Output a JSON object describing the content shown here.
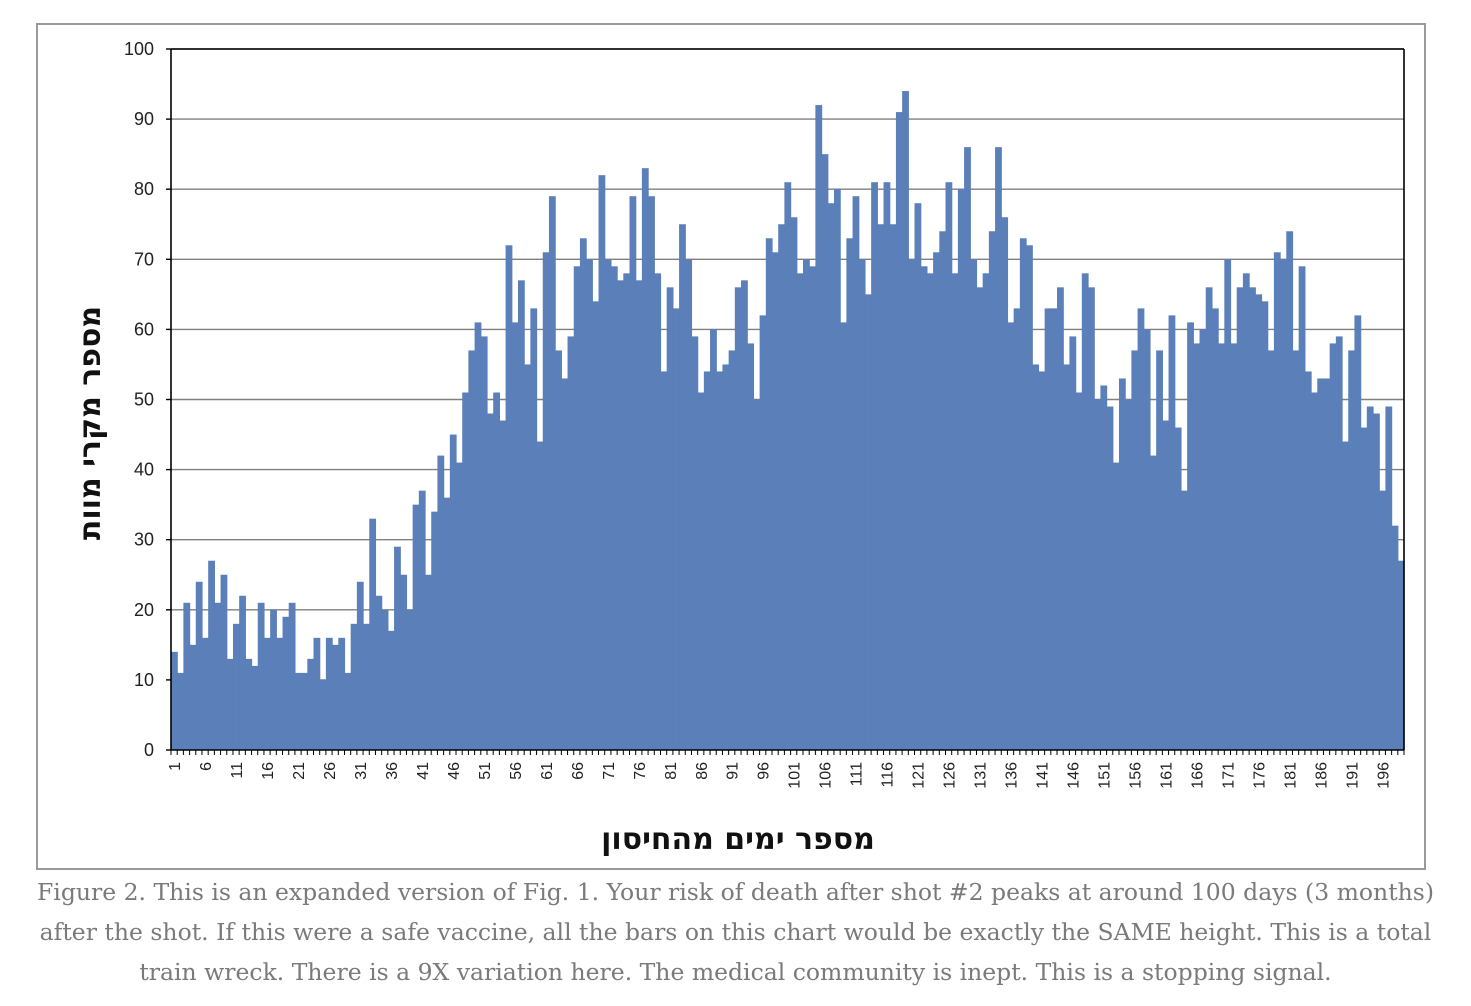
{
  "caption": "Figure 2. This is an expanded version of Fig. 1. Your risk of death after shot #2 peaks at around 100 days (3 months) after the shot. If this were a safe vaccine, all the bars on this chart would be exactly the SAME height. This is a total train wreck. There is a 9X variation here. The medical community is inept. This is a stopping signal.",
  "colors": {
    "bar": "#5b7fb8",
    "grid": "#7f7f7f",
    "axis": "#000000",
    "frame": "#9a9a9a",
    "caption": "#7a7a7a"
  },
  "chart_data": {
    "type": "bar",
    "title": "",
    "xlabel": "מספר ימים מהחיסון",
    "ylabel": "מספר מקרי מוות",
    "ylim": [
      0,
      100
    ],
    "yticks": [
      0,
      10,
      20,
      30,
      40,
      50,
      60,
      70,
      80,
      90,
      100
    ],
    "xtick_labels": [
      "1",
      "6",
      "11",
      "16",
      "21",
      "26",
      "31",
      "36",
      "41",
      "46",
      "51",
      "56",
      "61",
      "66",
      "71",
      "76",
      "81",
      "86",
      "91",
      "96",
      "101",
      "106",
      "111",
      "116",
      "121",
      "126",
      "131",
      "136",
      "141",
      "146",
      "151",
      "156",
      "161",
      "166",
      "171",
      "176",
      "181",
      "186",
      "191",
      "196"
    ],
    "grid": true,
    "legend": false,
    "x_start": 1,
    "values": [
      14,
      11,
      21,
      15,
      24,
      16,
      27,
      21,
      25,
      13,
      18,
      22,
      13,
      12,
      21,
      16,
      20,
      16,
      19,
      21,
      11,
      11,
      13,
      16,
      10,
      16,
      15,
      16,
      11,
      18,
      24,
      18,
      33,
      22,
      20,
      17,
      29,
      25,
      20,
      35,
      37,
      25,
      34,
      42,
      36,
      45,
      41,
      51,
      57,
      61,
      59,
      48,
      51,
      47,
      72,
      61,
      67,
      55,
      63,
      44,
      71,
      79,
      57,
      53,
      59,
      69,
      73,
      70,
      64,
      82,
      70,
      69,
      67,
      68,
      79,
      67,
      83,
      79,
      68,
      54,
      66,
      63,
      75,
      70,
      59,
      51,
      54,
      60,
      54,
      55,
      57,
      66,
      67,
      58,
      50,
      62,
      73,
      71,
      75,
      81,
      76,
      68,
      70,
      69,
      92,
      85,
      78,
      80,
      61,
      73,
      79,
      70,
      65,
      81,
      75,
      81,
      75,
      91,
      94,
      70,
      78,
      69,
      68,
      71,
      74,
      81,
      68,
      80,
      86,
      70,
      66,
      68,
      74,
      86,
      76,
      61,
      63,
      73,
      72,
      55,
      54,
      63,
      63,
      66,
      55,
      59,
      51,
      68,
      66,
      50,
      52,
      49,
      41,
      53,
      50,
      57,
      63,
      60,
      42,
      57,
      47,
      62,
      46,
      37,
      61,
      58,
      60,
      66,
      63,
      58,
      70,
      58,
      66,
      68,
      66,
      65,
      64,
      57,
      71,
      70,
      74,
      57,
      69,
      54,
      51,
      53,
      53,
      58,
      59,
      44,
      57,
      62,
      46,
      49,
      48,
      37,
      49,
      32,
      27
    ]
  }
}
